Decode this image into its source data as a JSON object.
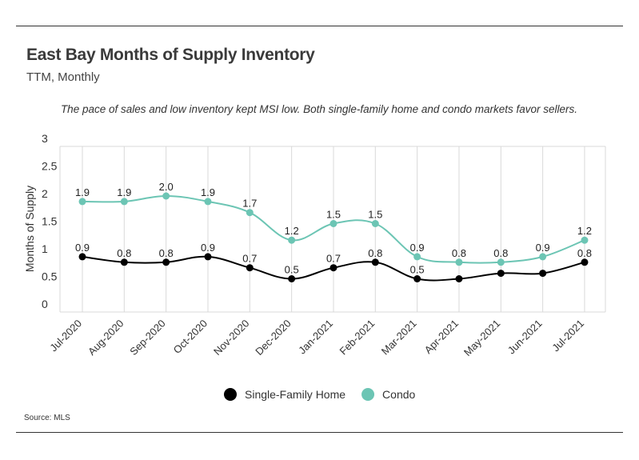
{
  "header": {
    "title": "East Bay Months of Supply Inventory",
    "subtitle": "TTM, Monthly",
    "annotation": "The pace of sales and low inventory kept MSI low. Both single-family home and condo markets favor sellers."
  },
  "footer": {
    "source": "Source:  MLS"
  },
  "chart_data": {
    "type": "line",
    "title": "East Bay Months of Supply Inventory",
    "subtitle": "TTM, Monthly",
    "xlabel": "",
    "ylabel": "Months of Supply",
    "ylim": [
      0,
      3
    ],
    "yticks": [
      0,
      0.5,
      1,
      1.5,
      2,
      2.5,
      3
    ],
    "ytick_labels": [
      "0",
      "0.5",
      "1",
      "1.5",
      "2",
      "2.5",
      "3"
    ],
    "grid": "vertical",
    "legend": "bottom-center",
    "categories": [
      "Jul-2020",
      "Aug-2020",
      "Sep-2020",
      "Oct-2020",
      "Nov-2020",
      "Dec-2020",
      "Jan-2021",
      "Feb-2021",
      "Mar-2021",
      "Apr-2021",
      "May-2021",
      "Jun-2021",
      "Jul-2021"
    ],
    "series": [
      {
        "name": "Single-Family Home",
        "color": "#000000",
        "values": [
          0.9,
          0.8,
          0.8,
          0.9,
          0.7,
          0.5,
          0.7,
          0.8,
          0.5,
          0.5,
          0.6,
          0.6,
          0.8
        ],
        "labels": [
          "0.9",
          "0.8",
          "0.8",
          "0.9",
          "0.7",
          "0.5",
          "0.7",
          "0.8",
          "0.5",
          "",
          "",
          "",
          "0.8"
        ]
      },
      {
        "name": "Condo",
        "color": "#6cc5b4",
        "values": [
          1.9,
          1.9,
          2.0,
          1.9,
          1.7,
          1.2,
          1.5,
          1.5,
          0.9,
          0.8,
          0.8,
          0.9,
          1.2
        ],
        "labels": [
          "1.9",
          "1.9",
          "2.0",
          "1.9",
          "1.7",
          "1.2",
          "1.5",
          "1.5",
          "0.9",
          "0.8",
          "0.8",
          "0.9",
          "1.2"
        ]
      }
    ]
  }
}
